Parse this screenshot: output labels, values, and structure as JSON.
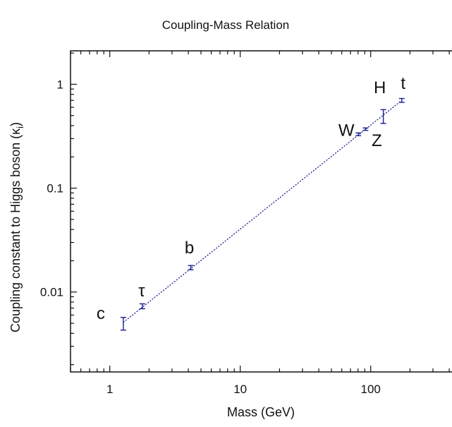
{
  "chart_data": {
    "type": "scatter",
    "title": "Coupling-Mass Relation",
    "xlabel": "Mass (GeV)",
    "ylabel": "Coupling constant to Higgs boson (κ",
    "ylabel_subscript": "i",
    "ylabel_suffix": ")",
    "x_scale": "log",
    "y_scale": "log",
    "xlim": [
      0.5,
      420
    ],
    "ylim": [
      0.0017,
      2.1
    ],
    "x_ticks": [
      {
        "value": 1,
        "label": "1"
      },
      {
        "value": 10,
        "label": "10"
      },
      {
        "value": 100,
        "label": "100"
      }
    ],
    "y_ticks": [
      {
        "value": 0.01,
        "label": "0.01"
      },
      {
        "value": 0.1,
        "label": "0.1"
      },
      {
        "value": 1,
        "label": "1"
      }
    ],
    "grid": false,
    "legend": "none",
    "points": [
      {
        "label": "c",
        "x": 1.27,
        "y": 0.005,
        "ylow": 0.0043,
        "yhigh": 0.0057
      },
      {
        "label": "τ",
        "x": 1.777,
        "y": 0.0073,
        "ylow": 0.0069,
        "yhigh": 0.0077
      },
      {
        "label": "b",
        "x": 4.18,
        "y": 0.0172,
        "ylow": 0.0164,
        "yhigh": 0.018
      },
      {
        "label": "W",
        "x": 80.4,
        "y": 0.33,
        "ylow": 0.32,
        "yhigh": 0.34
      },
      {
        "label": "Z",
        "x": 91.2,
        "y": 0.37,
        "ylow": 0.36,
        "yhigh": 0.38
      },
      {
        "label": "H",
        "x": 125,
        "y": 0.49,
        "ylow": 0.42,
        "yhigh": 0.57
      },
      {
        "label": "t",
        "x": 173,
        "y": 0.7,
        "ylow": 0.67,
        "yhigh": 0.73
      }
    ],
    "fit_line": {
      "x": [
        1.27,
        173
      ],
      "y": [
        0.0051,
        0.7
      ]
    },
    "colors": {
      "points": "#1a1f8f",
      "fit": "#1a1f8f",
      "axes": "#111111"
    }
  }
}
